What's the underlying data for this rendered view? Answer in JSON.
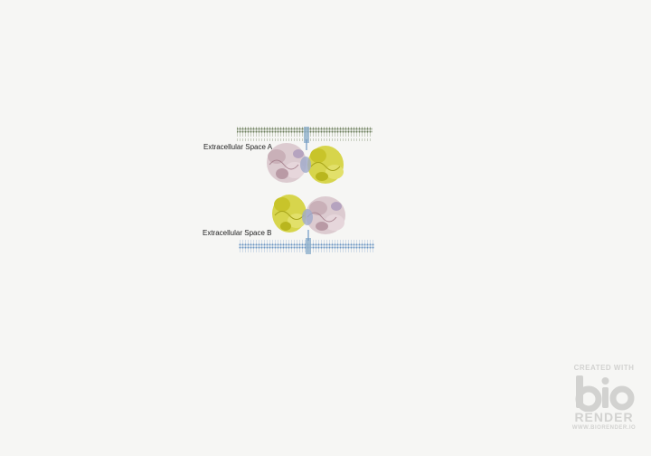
{
  "labels": {
    "space_a": "Extracellular Space A",
    "space_b": "Extracellular Space B"
  },
  "watermark": {
    "line1": "CREATED WITH",
    "logo": "bio",
    "line2": "RENDER",
    "line3": "WWW.BIORENDER.IO"
  },
  "colors": {
    "background": "#f6f6f4",
    "membrane_top": "#7a8a6a",
    "membrane_bottom": "#7aa0c8",
    "protein_pink": "#d9c6cc",
    "protein_yellow": "#d4d23a",
    "watermark": "#d2d2d0"
  }
}
